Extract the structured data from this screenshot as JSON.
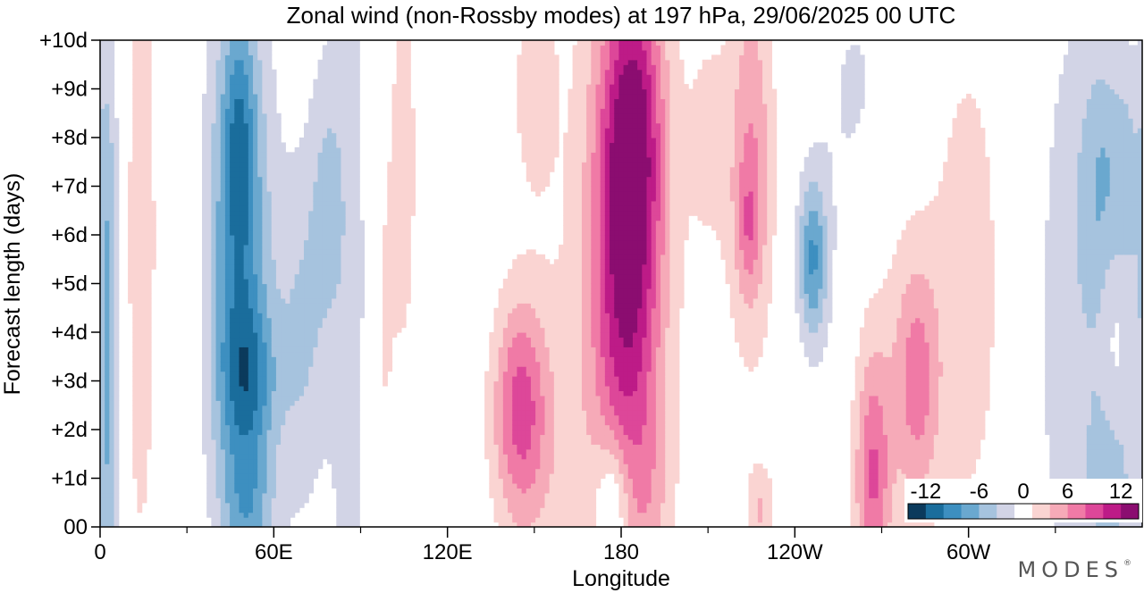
{
  "chart_data": {
    "type": "heatmap",
    "title": "Zonal wind (non-Rossby modes) at 197 hPa,  29/06/2025  00 UTC",
    "xlabel": "Longitude",
    "ylabel": "Forecast length (days)",
    "x_ticks": [
      {
        "lon": 0,
        "label": "0"
      },
      {
        "lon": 60,
        "label": "60E"
      },
      {
        "lon": 120,
        "label": "120E"
      },
      {
        "lon": 180,
        "label": "180"
      },
      {
        "lon": 240,
        "label": "120W"
      },
      {
        "lon": 300,
        "label": "60W"
      }
    ],
    "x_minor_ticks": [
      30,
      90,
      150,
      210,
      270,
      330
    ],
    "y_ticks": [
      {
        "day": 0,
        "label": "00"
      },
      {
        "day": 1,
        "label": "+1d"
      },
      {
        "day": 2,
        "label": "+2d"
      },
      {
        "day": 3,
        "label": "+3d"
      },
      {
        "day": 4,
        "label": "+4d"
      },
      {
        "day": 5,
        "label": "+5d"
      },
      {
        "day": 6,
        "label": "+6d"
      },
      {
        "day": 7,
        "label": "+7d"
      },
      {
        "day": 8,
        "label": "+8d"
      },
      {
        "day": 9,
        "label": "+9d"
      },
      {
        "day": 10,
        "label": "+10d"
      }
    ],
    "xlim": [
      0,
      360
    ],
    "ylim": [
      0,
      10
    ],
    "colorbar": {
      "levels": [
        -14,
        -12,
        -10,
        -8,
        -6,
        -4,
        -2,
        2,
        4,
        6,
        8,
        10,
        12,
        14
      ],
      "colors": [
        "#0b3a5c",
        "#1a6d9c",
        "#3d8fc0",
        "#6aa8cf",
        "#a6c3de",
        "#d2d4e6",
        "#ffffff",
        "#fad4d2",
        "#f6aab8",
        "#f07aa6",
        "#dd4799",
        "#bd1b87",
        "#8b0d70"
      ],
      "tick_labels": [
        {
          "value": -12,
          "label": "-12"
        },
        {
          "value": -6,
          "label": "-6"
        },
        {
          "value": 0,
          "label": "0"
        },
        {
          "value": 6,
          "label": "6"
        },
        {
          "value": 12,
          "label": "12"
        }
      ]
    },
    "field_features": [
      {
        "lon": 48,
        "day": 5.5,
        "lon_width": 11,
        "day_width": 6,
        "value": -9
      },
      {
        "lon": 52,
        "day": 3.0,
        "lon_width": 10,
        "day_width": 1.6,
        "value": -5
      },
      {
        "lon": 48,
        "day": 8.0,
        "lon_width": 5,
        "day_width": 2.2,
        "value": -4
      },
      {
        "lon": 52,
        "day": 0.3,
        "lon_width": 9,
        "day_width": 1.4,
        "value": -4
      },
      {
        "lon": 70,
        "day": 4.0,
        "lon_width": 9,
        "day_width": 4,
        "value": -4
      },
      {
        "lon": 78,
        "day": 7.0,
        "lon_width": 6,
        "day_width": 3,
        "value": -3
      },
      {
        "lon": 3,
        "day": 3.0,
        "lon_width": 4,
        "day_width": 7,
        "value": -6
      },
      {
        "lon": 14,
        "day": 6.0,
        "lon_width": 7,
        "day_width": 9,
        "value": 3
      },
      {
        "lon": 86,
        "day": 5.0,
        "lon_width": 7,
        "day_width": 10,
        "value": -3
      },
      {
        "lon": 98,
        "day": 4.0,
        "lon_width": 4,
        "day_width": 5,
        "value": 2
      },
      {
        "lon": 105,
        "day": 7.5,
        "lon_width": 5,
        "day_width": 5,
        "value": 3
      },
      {
        "lon": 350,
        "day": 7.0,
        "lon_width": 10,
        "day_width": 3,
        "value": -7
      },
      {
        "lon": 350,
        "day": 1.0,
        "lon_width": 8,
        "day_width": 2.5,
        "value": -6
      },
      {
        "lon": 350,
        "day": 4.0,
        "lon_width": 5,
        "day_width": 5,
        "value": 3
      },
      {
        "lon": 335,
        "day": 4.0,
        "lon_width": 14,
        "day_width": 8,
        "value": -3
      },
      {
        "lon": 246,
        "day": 5.5,
        "lon_width": 5,
        "day_width": 1.6,
        "value": -7
      },
      {
        "lon": 250,
        "day": 5.5,
        "lon_width": 10,
        "day_width": 4,
        "value": -2
      },
      {
        "lon": 262,
        "day": 9.0,
        "lon_width": 10,
        "day_width": 2.5,
        "value": -2.5
      },
      {
        "lon": 182,
        "day": 5.5,
        "lon_width": 12,
        "day_width": 5,
        "value": 11
      },
      {
        "lon": 185,
        "day": 8.5,
        "lon_width": 10,
        "day_width": 3,
        "value": 6
      },
      {
        "lon": 175,
        "day": 4.0,
        "lon_width": 28,
        "day_width": 12,
        "value": 2
      },
      {
        "lon": 145,
        "day": 2.5,
        "lon_width": 9,
        "day_width": 2.2,
        "value": 7
      },
      {
        "lon": 150,
        "day": 1.5,
        "lon_width": 16,
        "day_width": 3,
        "value": 2
      },
      {
        "lon": 150,
        "day": 9.0,
        "lon_width": 7,
        "day_width": 2,
        "value": 3
      },
      {
        "lon": 225,
        "day": 7.5,
        "lon_width": 8,
        "day_width": 4,
        "value": 6
      },
      {
        "lon": 224,
        "day": 6.2,
        "lon_width": 4,
        "day_width": 1.2,
        "value": 3
      },
      {
        "lon": 210,
        "day": 8.0,
        "lon_width": 8,
        "day_width": 3,
        "value": 2
      },
      {
        "lon": 190,
        "day": 0.5,
        "lon_width": 8,
        "day_width": 2,
        "value": 2
      },
      {
        "lon": 177,
        "day": 0.5,
        "lon_width": 6,
        "day_width": 1.4,
        "value": -5
      },
      {
        "lon": 267,
        "day": 1.0,
        "lon_width": 6,
        "day_width": 2.5,
        "value": 7
      },
      {
        "lon": 282,
        "day": 3.0,
        "lon_width": 8,
        "day_width": 2.5,
        "value": 6
      },
      {
        "lon": 300,
        "day": 5.0,
        "lon_width": 14,
        "day_width": 6,
        "value": 3
      },
      {
        "lon": 268,
        "day": 3.0,
        "lon_width": 18,
        "day_width": 6,
        "value": 1.5
      },
      {
        "lon": 228,
        "day": 0.3,
        "lon_width": 5,
        "day_width": 1,
        "value": 4
      }
    ]
  },
  "branding": {
    "logo_text": "MODES",
    "logo_mark": "®"
  }
}
